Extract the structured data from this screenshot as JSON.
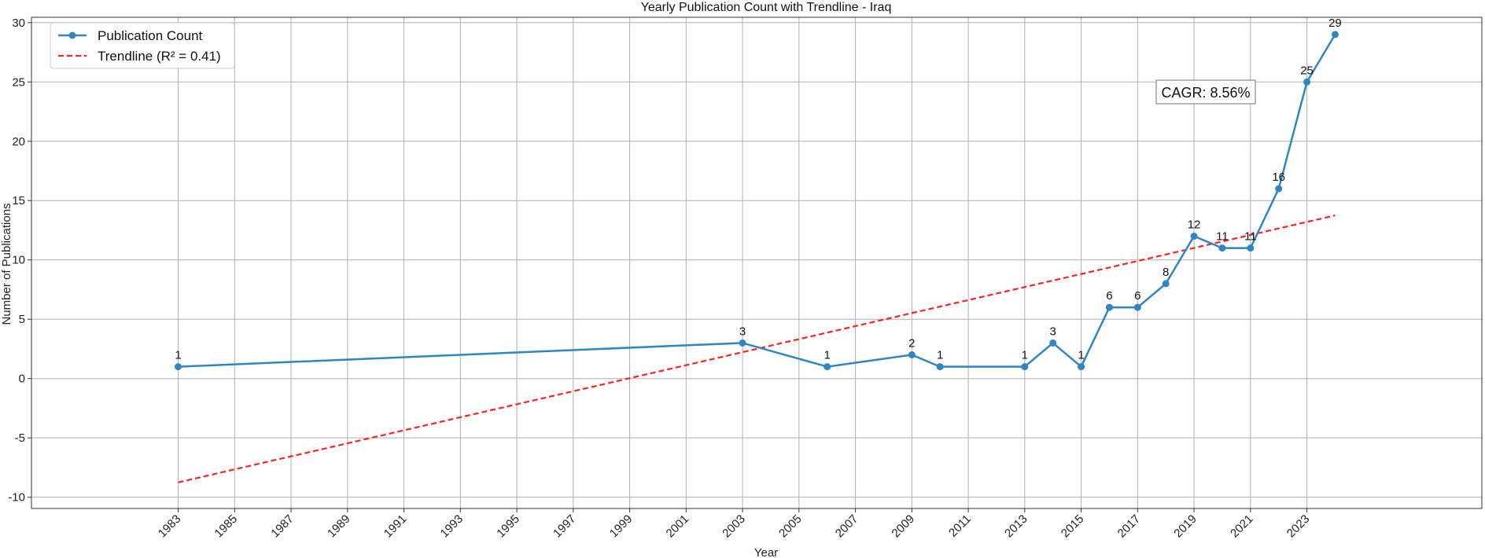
{
  "chart_data": {
    "type": "line",
    "title": "Yearly Publication Count with Trendline - Iraq",
    "xlabel": "Year",
    "ylabel": "Number of Publications",
    "xlim": [
      1977.8,
      2029.2
    ],
    "ylim": [
      -10.95,
      30.45
    ],
    "x_ticks": [
      1983,
      1985,
      1987,
      1989,
      1991,
      1993,
      1995,
      1997,
      1999,
      2001,
      2003,
      2005,
      2007,
      2009,
      2011,
      2013,
      2015,
      2017,
      2019,
      2021,
      2023
    ],
    "y_ticks": [
      -10,
      -5,
      0,
      5,
      10,
      15,
      20,
      25,
      30
    ],
    "grid": true,
    "legend_position": "upper-left",
    "series": [
      {
        "name": "Publication Count",
        "color": "#2f86c2",
        "marker": "circle",
        "x": [
          1983,
          2003,
          2006,
          2009,
          2010,
          2013,
          2014,
          2015,
          2016,
          2017,
          2018,
          2019,
          2020,
          2021,
          2022,
          2023,
          2024
        ],
        "values": [
          1,
          3,
          1,
          2,
          1,
          1,
          3,
          1,
          6,
          6,
          8,
          12,
          11,
          11,
          16,
          25,
          29
        ]
      },
      {
        "name": "Trendline (R² = 0.41)",
        "color": "#ff2222",
        "style": "dashed",
        "x": [
          1983,
          2024
        ],
        "values": [
          -8.75,
          13.75
        ]
      }
    ],
    "annotations": [
      {
        "text": "CAGR: 8.56%"
      }
    ]
  }
}
